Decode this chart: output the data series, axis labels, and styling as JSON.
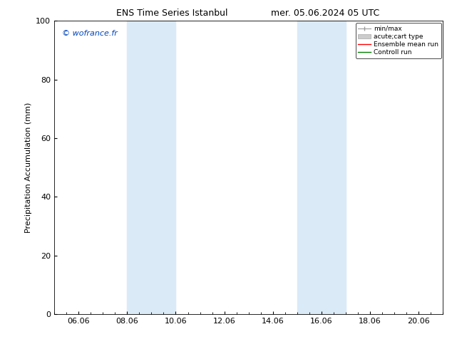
{
  "title_left": "ENS Time Series Istanbul",
  "title_right": "mer. 05.06.2024 05 UTC",
  "ylabel": "Precipitation Accumulation (mm)",
  "ylim": [
    0,
    100
  ],
  "yticks": [
    0,
    20,
    40,
    60,
    80,
    100
  ],
  "xtick_labels": [
    "06.06",
    "08.06",
    "10.06",
    "12.06",
    "14.06",
    "16.06",
    "18.06",
    "20.06"
  ],
  "xtick_positions": [
    1,
    3,
    5,
    7,
    9,
    11,
    13,
    15
  ],
  "xlim": [
    0,
    16
  ],
  "shade_bands": [
    {
      "x_start": 3,
      "x_end": 5
    },
    {
      "x_start": 10,
      "x_end": 12
    }
  ],
  "shade_color": "#daeaf7",
  "watermark_text": "© wofrance.fr",
  "watermark_color": "#0044bb",
  "legend_minmax_color": "#999999",
  "legend_acute_color": "#cccccc",
  "legend_ens_color": "red",
  "legend_ctrl_color": "green",
  "background_color": "#ffffff",
  "title_fontsize": 9,
  "label_fontsize": 8,
  "tick_fontsize": 8,
  "watermark_fontsize": 8
}
